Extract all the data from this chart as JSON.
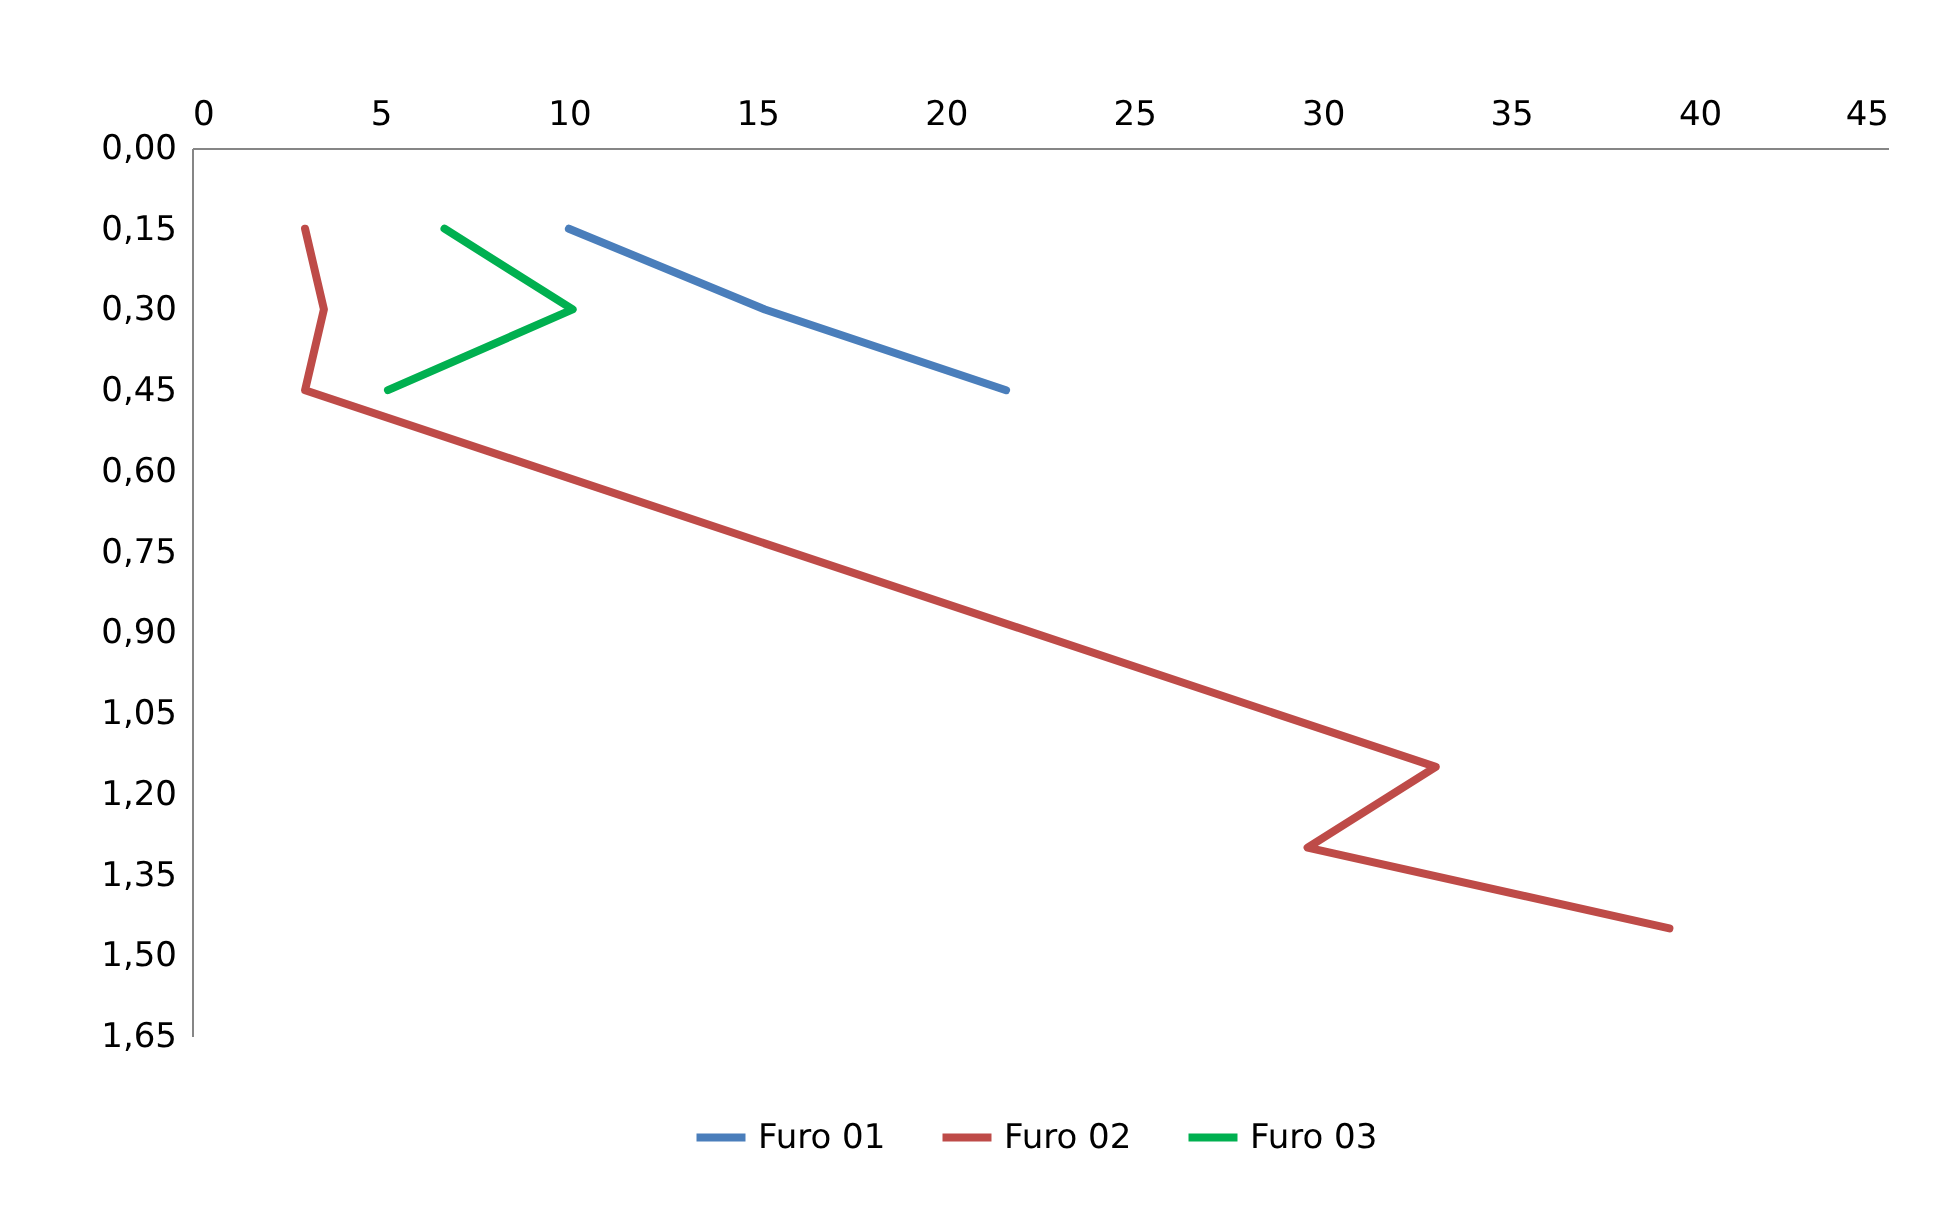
{
  "chart_data": {
    "type": "line",
    "xlim": [
      0,
      45
    ],
    "xticks": [
      0,
      5,
      10,
      15,
      20,
      25,
      30,
      35,
      40,
      45
    ],
    "ylim": [
      1.65,
      0
    ],
    "yticks": [
      {
        "value": 0,
        "label": "0,00"
      },
      {
        "value": 0.15,
        "label": "0,15"
      },
      {
        "value": 0.3,
        "label": "0,30"
      },
      {
        "value": 0.45,
        "label": "0,45"
      },
      {
        "value": 0.6,
        "label": "0,60"
      },
      {
        "value": 0.75,
        "label": "0,75"
      },
      {
        "value": 0.9,
        "label": "0,90"
      },
      {
        "value": 1.05,
        "label": "1,05"
      },
      {
        "value": 1.2,
        "label": "1,20"
      },
      {
        "value": 1.35,
        "label": "1,35"
      },
      {
        "value": 1.5,
        "label": "1,50"
      },
      {
        "value": 1.65,
        "label": "1,65"
      }
    ],
    "series": [
      {
        "name": "Furo 01",
        "color": "#4a7ebb",
        "x": [
          10.0,
          15.2,
          21.6
        ],
        "values": [
          0.15,
          0.3,
          0.45
        ]
      },
      {
        "name": "Furo 02",
        "color": "#be4b48",
        "x": [
          3.0,
          3.5,
          3.0,
          33.0,
          29.6,
          39.2
        ],
        "values": [
          0.15,
          0.3,
          0.45,
          1.15,
          1.3,
          1.45
        ]
      },
      {
        "name": "Furo 03",
        "color": "#00b050",
        "x": [
          6.7,
          10.1,
          5.2
        ],
        "values": [
          0.15,
          0.3,
          0.45
        ]
      }
    ],
    "legend": "bottom",
    "grid": false,
    "line_style": "solid"
  }
}
